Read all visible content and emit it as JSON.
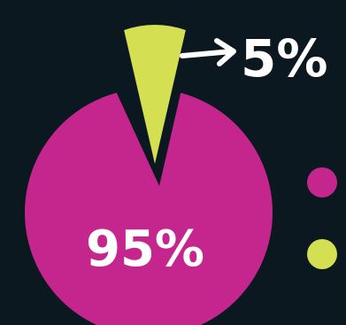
{
  "chart_data": {
    "type": "pie",
    "title": "",
    "slices": [
      {
        "name": "",
        "value": 95,
        "label": "95%",
        "color": "#c4268d"
      },
      {
        "name": "",
        "value": 5,
        "label": "5%",
        "color": "#d4df52"
      }
    ],
    "callout": {
      "arrow_glyph": "→",
      "target_slice": 1
    },
    "legend": {
      "placement": "right",
      "marker": "dot"
    }
  },
  "colors": {
    "background": "#0c1820",
    "text": "#ffffff"
  }
}
